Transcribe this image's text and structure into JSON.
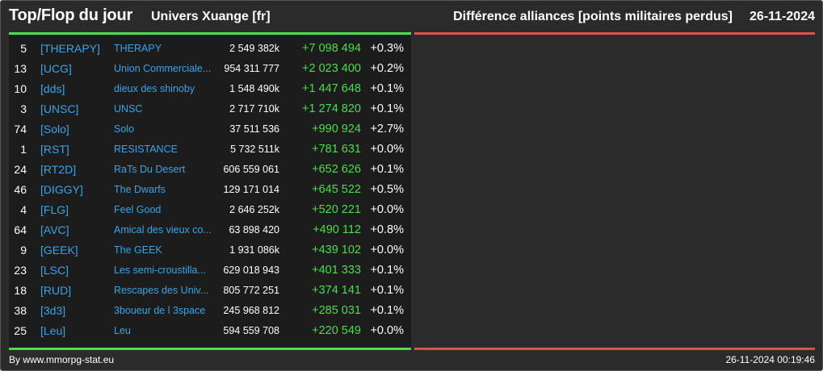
{
  "header": {
    "title": "Top/Flop du jour",
    "universe": "Univers Xuange [fr]",
    "metric": "Différence alliances [points militaires perdus]",
    "date": "26-11-2024"
  },
  "colors": {
    "accent_green": "#4cdd4c",
    "accent_red": "#d9534f",
    "link_blue": "#3aa3e8"
  },
  "rows": [
    {
      "rank": "5",
      "tag": "[THERAPY]",
      "name": "THERAPY",
      "points": "2 549 382k",
      "diff": "+7 098 494",
      "pct": "+0.3%"
    },
    {
      "rank": "13",
      "tag": "[UCG]",
      "name": "Union Commerciale...",
      "points": "954 311 777",
      "diff": "+2 023 400",
      "pct": "+0.2%"
    },
    {
      "rank": "10",
      "tag": "[dds]",
      "name": "dieux des shinoby",
      "points": "1 548 490k",
      "diff": "+1 447 648",
      "pct": "+0.1%"
    },
    {
      "rank": "3",
      "tag": "[UNSC]",
      "name": "UNSC",
      "points": "2 717 710k",
      "diff": "+1 274 820",
      "pct": "+0.1%"
    },
    {
      "rank": "74",
      "tag": "[Solo]",
      "name": "Solo",
      "points": "37 511 536",
      "diff": "+990 924",
      "pct": "+2.7%"
    },
    {
      "rank": "1",
      "tag": "[RST]",
      "name": "RESISTANCE",
      "points": "5 732 511k",
      "diff": "+781 631",
      "pct": "+0.0%"
    },
    {
      "rank": "24",
      "tag": "[RT2D]",
      "name": "RaTs Du Desert",
      "points": "606 559 061",
      "diff": "+652 626",
      "pct": "+0.1%"
    },
    {
      "rank": "46",
      "tag": "[DIGGY]",
      "name": "The Dwarfs",
      "points": "129 171 014",
      "diff": "+645 522",
      "pct": "+0.5%"
    },
    {
      "rank": "4",
      "tag": "[FLG]",
      "name": "Feel Good",
      "points": "2 646 252k",
      "diff": "+520 221",
      "pct": "+0.0%"
    },
    {
      "rank": "64",
      "tag": "[AVC]",
      "name": "Amical des vieux co...",
      "points": "63 898 420",
      "diff": "+490 112",
      "pct": "+0.8%"
    },
    {
      "rank": "9",
      "tag": "[GEEK]",
      "name": "The GEEK",
      "points": "1 931 086k",
      "diff": "+439 102",
      "pct": "+0.0%"
    },
    {
      "rank": "23",
      "tag": "[LSC]",
      "name": "Les semi-croustilla...",
      "points": "629 018 943",
      "diff": "+401 333",
      "pct": "+0.1%"
    },
    {
      "rank": "18",
      "tag": "[RUD]",
      "name": "Rescapes des Univ...",
      "points": "805 772 251",
      "diff": "+374 141",
      "pct": "+0.1%"
    },
    {
      "rank": "38",
      "tag": "[3d3]",
      "name": "3boueur de l 3space",
      "points": "245 968 812",
      "diff": "+285 031",
      "pct": "+0.1%"
    },
    {
      "rank": "25",
      "tag": "[Leu]",
      "name": "Leu",
      "points": "594 559 708",
      "diff": "+220 549",
      "pct": "+0.0%"
    }
  ],
  "footer": {
    "credit": "By www.mmorpg-stat.eu",
    "timestamp": "26-11-2024 00:19:46"
  }
}
